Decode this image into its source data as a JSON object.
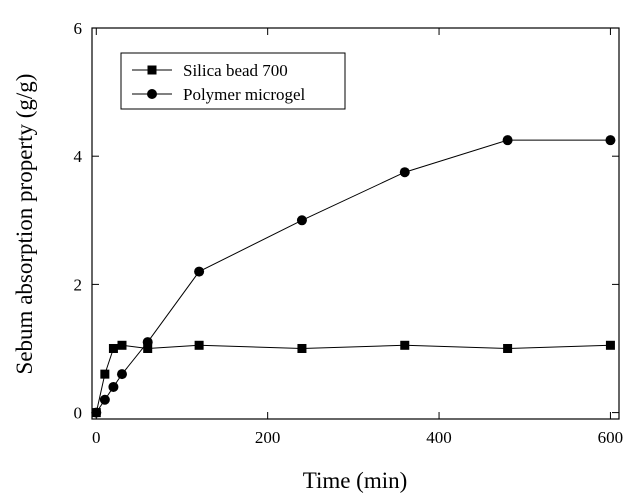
{
  "chart_data": {
    "type": "line",
    "xlabel": "Time (min)",
    "ylabel": "Sebum absorption property (g/g)",
    "xlim": [
      -5,
      610
    ],
    "ylim": [
      -0.1,
      6
    ],
    "x_ticks": [
      0,
      200,
      400,
      600
    ],
    "y_ticks": [
      0,
      2,
      4,
      6
    ],
    "grid": false,
    "legend_position": "top-left",
    "series": [
      {
        "name": "Silica bead 700",
        "marker": "square",
        "color": "#000000",
        "x": [
          0,
          10,
          20,
          30,
          60,
          120,
          240,
          360,
          480,
          600
        ],
        "y": [
          0,
          0.6,
          1.0,
          1.05,
          1.0,
          1.05,
          1.0,
          1.05,
          1.0,
          1.05
        ]
      },
      {
        "name": "Polymer microgel",
        "marker": "circle",
        "color": "#000000",
        "x": [
          0,
          10,
          20,
          30,
          60,
          120,
          240,
          360,
          480,
          600
        ],
        "y": [
          0,
          0.2,
          0.4,
          0.6,
          1.1,
          2.2,
          3.0,
          3.75,
          4.25,
          4.25
        ]
      }
    ]
  }
}
